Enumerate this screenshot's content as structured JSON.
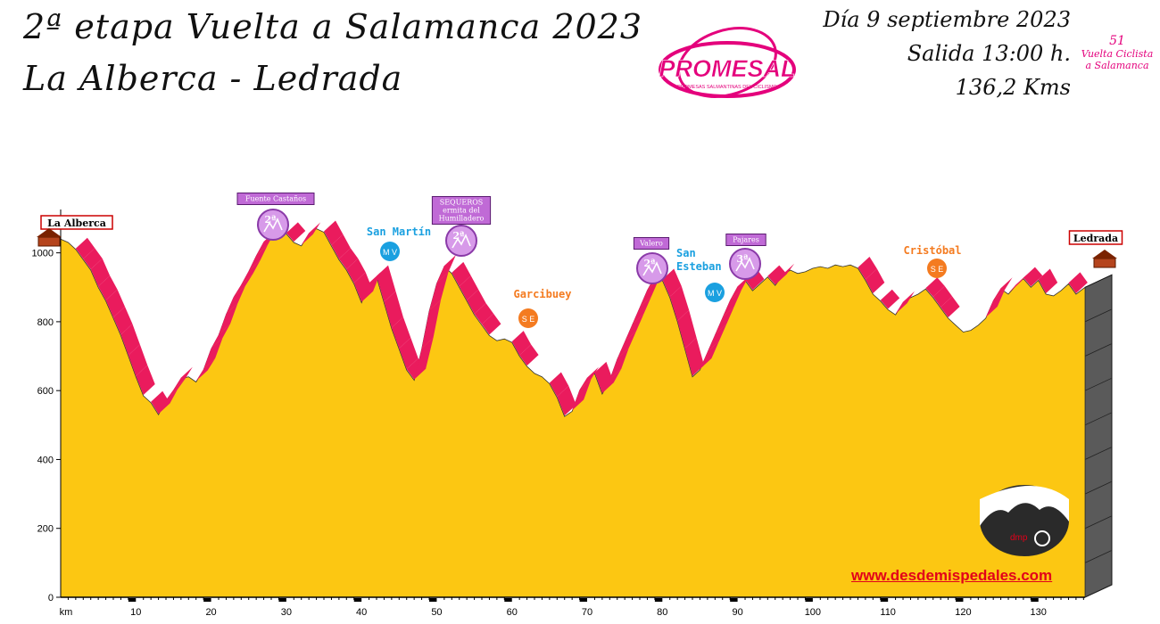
{
  "header": {
    "title_line1": "2ª etapa Vuelta a Salamanca 2023",
    "title_line2": "La Alberca - Ledrada",
    "date": "Día 9 septiembre 2023",
    "start_time": "Salida 13:00 h.",
    "distance": "136,2 Kms"
  },
  "logos": {
    "promesal": "PROMESAL",
    "promesal_sub": "PROMESAS SALMANTINAS DEL CICLISMO",
    "vuelta_num": "51",
    "vuelta_line1": "Vuelta Ciclista",
    "vuelta_line2": "a Salamanca",
    "dmp": "dmp"
  },
  "website": "www.desdemispedales.com",
  "colors": {
    "fill": "#fcc712",
    "stripe": "#ea1b5d",
    "climb": "#c06ad6",
    "meta": "#1aa0e0",
    "sprint": "#f47b20"
  },
  "chart_data": {
    "type": "area",
    "xlabel": "km",
    "ylabel": "",
    "xlim": [
      0,
      136.2
    ],
    "ylim": [
      0,
      1100
    ],
    "x_ticks": [
      10,
      20,
      30,
      40,
      50,
      60,
      70,
      80,
      90,
      100,
      110,
      120,
      130
    ],
    "y_ticks": [
      0,
      200,
      400,
      600,
      800,
      1000
    ],
    "profile": [
      [
        0,
        1040
      ],
      [
        1,
        1030
      ],
      [
        2,
        1010
      ],
      [
        3,
        980
      ],
      [
        4,
        950
      ],
      [
        5,
        900
      ],
      [
        6,
        860
      ],
      [
        7,
        810
      ],
      [
        8,
        760
      ],
      [
        9,
        700
      ],
      [
        10,
        640
      ],
      [
        11,
        585
      ],
      [
        12,
        565
      ],
      [
        13,
        530
      ],
      [
        14,
        570
      ],
      [
        15,
        600
      ],
      [
        16,
        635
      ],
      [
        17,
        640
      ],
      [
        18,
        625
      ],
      [
        19,
        660
      ],
      [
        20,
        720
      ],
      [
        21,
        760
      ],
      [
        22,
        820
      ],
      [
        23,
        870
      ],
      [
        24,
        905
      ],
      [
        25,
        945
      ],
      [
        26,
        990
      ],
      [
        27,
        1030
      ],
      [
        28,
        1045
      ],
      [
        29,
        1060
      ],
      [
        30,
        1055
      ],
      [
        31,
        1030
      ],
      [
        32,
        1020
      ],
      [
        33,
        1055
      ],
      [
        34,
        1070
      ],
      [
        35,
        1060
      ],
      [
        36,
        1020
      ],
      [
        37,
        980
      ],
      [
        38,
        950
      ],
      [
        39,
        910
      ],
      [
        40,
        855
      ],
      [
        41,
        910
      ],
      [
        42,
        930
      ],
      [
        43,
        855
      ],
      [
        44,
        780
      ],
      [
        45,
        720
      ],
      [
        46,
        660
      ],
      [
        47,
        630
      ],
      [
        48,
        720
      ],
      [
        49,
        830
      ],
      [
        50,
        910
      ],
      [
        51,
        960
      ],
      [
        52,
        940
      ],
      [
        53,
        900
      ],
      [
        54,
        860
      ],
      [
        55,
        820
      ],
      [
        56,
        790
      ],
      [
        57,
        760
      ],
      [
        58,
        745
      ],
      [
        59,
        750
      ],
      [
        60,
        740
      ],
      [
        61,
        700
      ],
      [
        62,
        670
      ],
      [
        63,
        650
      ],
      [
        64,
        640
      ],
      [
        65,
        620
      ],
      [
        66,
        580
      ],
      [
        67,
        525
      ],
      [
        68,
        540
      ],
      [
        69,
        600
      ],
      [
        70,
        635
      ],
      [
        71,
        650
      ],
      [
        72,
        590
      ],
      [
        73,
        630
      ],
      [
        74,
        690
      ],
      [
        75,
        740
      ],
      [
        76,
        790
      ],
      [
        77,
        840
      ],
      [
        78,
        890
      ],
      [
        79,
        930
      ],
      [
        80,
        920
      ],
      [
        81,
        870
      ],
      [
        82,
        800
      ],
      [
        83,
        720
      ],
      [
        84,
        640
      ],
      [
        85,
        660
      ],
      [
        86,
        710
      ],
      [
        87,
        760
      ],
      [
        88,
        810
      ],
      [
        89,
        860
      ],
      [
        90,
        900
      ],
      [
        91,
        920
      ],
      [
        92,
        890
      ],
      [
        93,
        910
      ],
      [
        94,
        930
      ],
      [
        95,
        905
      ],
      [
        96,
        935
      ],
      [
        97,
        950
      ],
      [
        98,
        940
      ],
      [
        99,
        945
      ],
      [
        100,
        955
      ],
      [
        101,
        960
      ],
      [
        102,
        955
      ],
      [
        103,
        965
      ],
      [
        104,
        960
      ],
      [
        105,
        965
      ],
      [
        106,
        955
      ],
      [
        107,
        920
      ],
      [
        108,
        880
      ],
      [
        109,
        860
      ],
      [
        110,
        835
      ],
      [
        111,
        820
      ],
      [
        112,
        855
      ],
      [
        113,
        870
      ],
      [
        114,
        880
      ],
      [
        115,
        895
      ],
      [
        116,
        870
      ],
      [
        117,
        840
      ],
      [
        118,
        810
      ],
      [
        119,
        790
      ],
      [
        120,
        770
      ],
      [
        121,
        775
      ],
      [
        122,
        790
      ],
      [
        123,
        810
      ],
      [
        124,
        860
      ],
      [
        125,
        895
      ],
      [
        126,
        880
      ],
      [
        127,
        905
      ],
      [
        128,
        925
      ],
      [
        129,
        900
      ],
      [
        130,
        920
      ],
      [
        131,
        880
      ],
      [
        132,
        875
      ],
      [
        133,
        890
      ],
      [
        134,
        910
      ],
      [
        135,
        880
      ],
      [
        136.2,
        900
      ]
    ],
    "towns": [
      {
        "name": "La Alberca",
        "km": 0
      },
      {
        "name": "Ledrada",
        "km": 136.2
      }
    ],
    "climbs": [
      {
        "name": "Fuente Castaños",
        "category": "2ª",
        "km": 28
      },
      {
        "name": "SEQUEROS ermita del Humilladero",
        "category": "2ª",
        "km": 53
      },
      {
        "name": "Valero",
        "category": "2ª",
        "km": 78
      },
      {
        "name": "Pajares",
        "category": "3ª",
        "km": 90
      }
    ],
    "metas_volantes": [
      {
        "name": "San Martín",
        "label": "M V",
        "km": 43
      },
      {
        "name": "San Esteban",
        "label": "M V",
        "km": 87
      }
    ],
    "sprints_especiales": [
      {
        "name": "Garcibuey",
        "label": "S E",
        "km": 62
      },
      {
        "name": "Cristóbal",
        "label": "S E",
        "km": 117
      }
    ]
  }
}
